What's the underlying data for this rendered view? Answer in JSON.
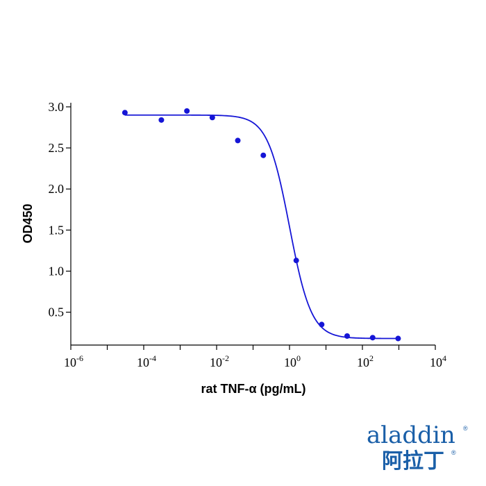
{
  "chart_data": {
    "type": "scatter",
    "title": "",
    "xlabel": "rat TNF-α (pg/mL)",
    "ylabel": "OD450",
    "x_scale": "log10",
    "xlim": [
      1e-06,
      10000.0
    ],
    "ylim": [
      0.1,
      3.05
    ],
    "x_ticks": [
      {
        "base": "10",
        "exp": "-6"
      },
      {
        "base": "10",
        "exp": "-4"
      },
      {
        "base": "10",
        "exp": "-2"
      },
      {
        "base": "10",
        "exp": "0"
      },
      {
        "base": "10",
        "exp": "2"
      },
      {
        "base": "10",
        "exp": "4"
      }
    ],
    "y_ticks": [
      "0.5",
      "1.0",
      "1.5",
      "2.0",
      "2.5",
      "3.0"
    ],
    "series": [
      {
        "points": [
          {
            "x": 3.05e-05,
            "y": 2.93
          },
          {
            "x": 0.000305,
            "y": 2.84
          },
          {
            "x": 0.00153,
            "y": 2.95
          },
          {
            "x": 0.00763,
            "y": 2.87
          },
          {
            "x": 0.0381,
            "y": 2.59
          },
          {
            "x": 0.191,
            "y": 2.41
          },
          {
            "x": 1.53,
            "y": 1.13
          },
          {
            "x": 7.63,
            "y": 0.35
          },
          {
            "x": 38.1,
            "y": 0.21
          },
          {
            "x": 191,
            "y": 0.19
          },
          {
            "x": 954,
            "y": 0.18
          }
        ],
        "fit": {
          "model": "4PL",
          "top": 2.9,
          "bottom": 0.18,
          "ic50": 1.0,
          "hill": 1.45
        },
        "color": "#1515d6"
      }
    ],
    "grid": false,
    "legend": "none"
  },
  "logo": {
    "word": "aladdin",
    "cn": "阿拉丁",
    "mark": "®"
  }
}
